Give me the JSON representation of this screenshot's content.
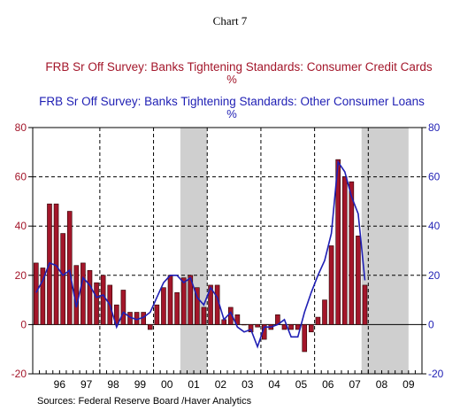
{
  "chart_data": {
    "type": "bar",
    "title": "Chart 7",
    "series": [
      {
        "name": "FRB Sr Off Survey: Banks Tightening Standards: Consumer Credit Cards",
        "unit": "%",
        "kind": "bar",
        "color": "#a3162a",
        "values": [
          25,
          23,
          49,
          49,
          37,
          46,
          24,
          25,
          22,
          17,
          20,
          16,
          8,
          14,
          5,
          5,
          5,
          -2,
          8,
          15,
          20,
          13,
          19,
          20,
          15,
          7,
          16,
          16,
          2,
          7,
          4,
          0,
          -3,
          -1,
          -6,
          -2,
          4,
          -2,
          -2,
          -2,
          -11,
          -3,
          3,
          10,
          32,
          67,
          60,
          58,
          36,
          16
        ]
      },
      {
        "name": "FRB Sr Off Survey: Banks Tightening Standards: Other Consumer Loans",
        "unit": "%",
        "kind": "line",
        "color": "#1f1fb4",
        "values": [
          13,
          18,
          25,
          24,
          20,
          22,
          7,
          19,
          16,
          11,
          12,
          8,
          -1,
          5,
          3,
          2,
          3,
          5,
          11,
          17,
          20,
          20,
          17,
          19,
          11,
          8,
          15,
          11,
          2,
          5,
          -1,
          -3,
          -2,
          -9,
          -1,
          -1,
          0,
          2,
          -5,
          -5,
          5,
          13,
          20,
          26,
          37,
          66,
          62,
          52,
          45,
          18
        ]
      }
    ],
    "x": {
      "start": "1995Q3",
      "end": "2009Q4",
      "year_labels": [
        "96",
        "97",
        "98",
        "99",
        "00",
        "01",
        "02",
        "03",
        "04",
        "05",
        "06",
        "07",
        "08",
        "09"
      ]
    },
    "y_left": {
      "min": -20,
      "max": 80,
      "ticks": [
        -20,
        0,
        20,
        40,
        60,
        80
      ],
      "color": "#a3162a"
    },
    "y_right": {
      "min": -20,
      "max": 80,
      "ticks": [
        -20,
        0,
        20,
        40,
        60,
        80
      ],
      "color": "#1f1fb4"
    },
    "recessions": [
      {
        "start": "2001Q1",
        "end": "2001Q4"
      },
      {
        "start": "2007Q4",
        "end": "2009Q2"
      }
    ],
    "source": "Sources:  Federal Reserve Board /Haver Analytics"
  }
}
